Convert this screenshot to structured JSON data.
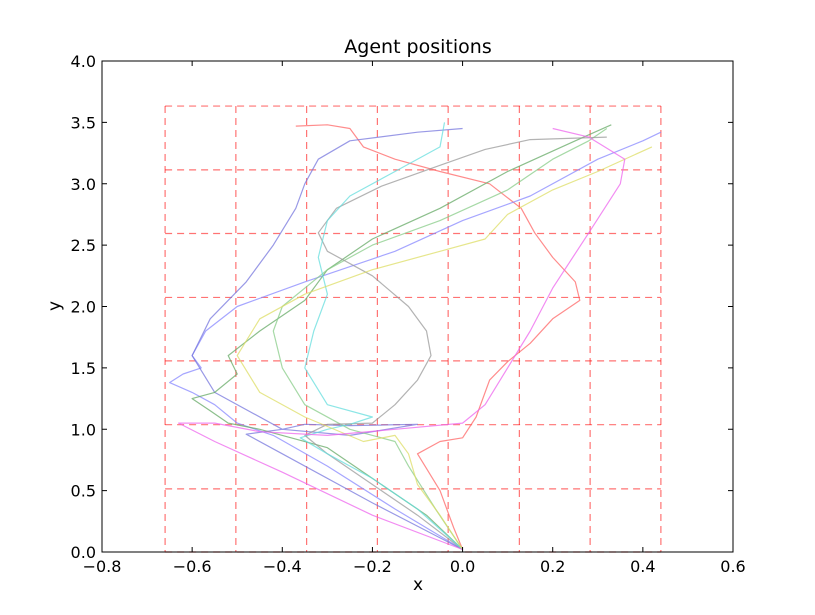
{
  "chart_data": {
    "type": "line",
    "title": "Agent positions",
    "xlabel": "x",
    "ylabel": "y",
    "xlim": [
      -0.8,
      0.6
    ],
    "ylim": [
      0.0,
      4.0
    ],
    "xticks": [
      -0.8,
      -0.6,
      -0.4,
      -0.2,
      0.0,
      0.2,
      0.4,
      0.6
    ],
    "xtick_labels": [
      "−0.8",
      "−0.6",
      "−0.4",
      "−0.2",
      "0.0",
      "0.2",
      "0.4",
      "0.6"
    ],
    "yticks": [
      0.0,
      0.5,
      1.0,
      1.5,
      2.0,
      2.5,
      3.0,
      3.5,
      4.0
    ],
    "ytick_labels": [
      "0.0",
      "0.5",
      "1.0",
      "1.5",
      "2.0",
      "2.5",
      "3.0",
      "3.5",
      "4.0"
    ],
    "grid_overlay": {
      "color": "#ff0000",
      "style": "dashed",
      "x": [
        -0.66,
        -0.503,
        -0.346,
        -0.189,
        -0.032,
        0.126,
        0.283,
        0.44
      ],
      "y": [
        0.0,
        0.514,
        1.037,
        1.557,
        2.074,
        2.595,
        3.113,
        3.633
      ]
    },
    "series": [
      {
        "color": "#ff6666",
        "points": [
          [
            0.0,
            0.02
          ],
          [
            -0.02,
            0.2
          ],
          [
            -0.05,
            0.5
          ],
          [
            -0.1,
            0.8
          ],
          [
            -0.05,
            0.9
          ],
          [
            0.0,
            0.93
          ],
          [
            0.03,
            1.1
          ],
          [
            0.06,
            1.4
          ],
          [
            0.1,
            1.55
          ],
          [
            0.15,
            1.7
          ],
          [
            0.2,
            1.9
          ],
          [
            0.26,
            2.05
          ],
          [
            0.25,
            2.2
          ],
          [
            0.2,
            2.4
          ],
          [
            0.16,
            2.6
          ],
          [
            0.13,
            2.8
          ],
          [
            0.06,
            3.0
          ],
          [
            -0.05,
            3.1
          ],
          [
            -0.15,
            3.2
          ],
          [
            -0.22,
            3.3
          ],
          [
            -0.25,
            3.45
          ],
          [
            -0.3,
            3.48
          ],
          [
            -0.37,
            3.47
          ]
        ]
      },
      {
        "color": "#8888ff",
        "points": [
          [
            0.0,
            0.02
          ],
          [
            -0.15,
            0.35
          ],
          [
            -0.3,
            0.7
          ],
          [
            -0.42,
            0.95
          ],
          [
            -0.5,
            1.05
          ],
          [
            -0.55,
            1.2
          ],
          [
            -0.6,
            1.3
          ],
          [
            -0.65,
            1.38
          ],
          [
            -0.62,
            1.45
          ],
          [
            -0.58,
            1.5
          ],
          [
            -0.6,
            1.6
          ],
          [
            -0.57,
            1.8
          ],
          [
            -0.5,
            2.0
          ],
          [
            -0.35,
            2.2
          ],
          [
            -0.15,
            2.45
          ],
          [
            0.0,
            2.7
          ],
          [
            0.15,
            2.9
          ],
          [
            0.3,
            3.2
          ],
          [
            0.4,
            3.35
          ],
          [
            0.44,
            3.42
          ]
        ]
      },
      {
        "color": "#7777dd",
        "points": [
          [
            0.0,
            0.02
          ],
          [
            -0.2,
            0.4
          ],
          [
            -0.4,
            0.8
          ],
          [
            -0.48,
            0.96
          ],
          [
            -0.4,
            1.0
          ],
          [
            -0.35,
            1.04
          ],
          [
            -0.25,
            1.03
          ],
          [
            -0.1,
            1.04
          ],
          [
            -0.25,
            0.95
          ],
          [
            -0.4,
            1.0
          ],
          [
            -0.55,
            1.3
          ],
          [
            -0.6,
            1.6
          ],
          [
            -0.56,
            1.9
          ],
          [
            -0.48,
            2.2
          ],
          [
            -0.42,
            2.5
          ],
          [
            -0.37,
            2.8
          ],
          [
            -0.35,
            3.0
          ],
          [
            -0.32,
            3.2
          ],
          [
            -0.25,
            3.35
          ],
          [
            -0.1,
            3.42
          ],
          [
            0.0,
            3.45
          ]
        ]
      },
      {
        "color": "#66aa66",
        "points": [
          [
            0.0,
            0.02
          ],
          [
            -0.08,
            0.3
          ],
          [
            -0.2,
            0.6
          ],
          [
            -0.3,
            0.85
          ],
          [
            -0.45,
            1.0
          ],
          [
            -0.52,
            1.05
          ],
          [
            -0.56,
            1.15
          ],
          [
            -0.6,
            1.25
          ],
          [
            -0.55,
            1.3
          ],
          [
            -0.5,
            1.45
          ],
          [
            -0.52,
            1.6
          ],
          [
            -0.45,
            1.8
          ],
          [
            -0.35,
            2.05
          ],
          [
            -0.3,
            2.3
          ],
          [
            -0.2,
            2.55
          ],
          [
            -0.05,
            2.8
          ],
          [
            0.1,
            3.1
          ],
          [
            0.25,
            3.35
          ],
          [
            0.33,
            3.48
          ]
        ]
      },
      {
        "color": "#88cc88",
        "points": [
          [
            0.0,
            0.02
          ],
          [
            -0.06,
            0.35
          ],
          [
            -0.12,
            0.7
          ],
          [
            -0.15,
            0.9
          ],
          [
            -0.25,
            1.0
          ],
          [
            -0.35,
            1.2
          ],
          [
            -0.4,
            1.5
          ],
          [
            -0.42,
            1.8
          ],
          [
            -0.4,
            2.0
          ],
          [
            -0.3,
            2.3
          ],
          [
            -0.2,
            2.5
          ],
          [
            -0.05,
            2.7
          ],
          [
            0.1,
            2.95
          ],
          [
            0.2,
            3.2
          ],
          [
            0.28,
            3.35
          ],
          [
            0.32,
            3.45
          ]
        ]
      },
      {
        "color": "#999999",
        "points": [
          [
            0.0,
            0.02
          ],
          [
            -0.1,
            0.3
          ],
          [
            -0.2,
            0.55
          ],
          [
            -0.3,
            0.8
          ],
          [
            -0.35,
            0.95
          ],
          [
            -0.3,
            1.04
          ],
          [
            -0.2,
            1.05
          ],
          [
            -0.15,
            1.2
          ],
          [
            -0.1,
            1.4
          ],
          [
            -0.07,
            1.6
          ],
          [
            -0.08,
            1.8
          ],
          [
            -0.12,
            2.0
          ],
          [
            -0.2,
            2.25
          ],
          [
            -0.3,
            2.45
          ],
          [
            -0.32,
            2.6
          ],
          [
            -0.28,
            2.8
          ],
          [
            -0.18,
            2.98
          ],
          [
            -0.05,
            3.15
          ],
          [
            0.05,
            3.28
          ],
          [
            0.15,
            3.36
          ],
          [
            0.32,
            3.38
          ]
        ]
      },
      {
        "color": "#66dddd",
        "points": [
          [
            0.0,
            0.02
          ],
          [
            -0.1,
            0.35
          ],
          [
            -0.2,
            0.6
          ],
          [
            -0.3,
            0.8
          ],
          [
            -0.36,
            0.93
          ],
          [
            -0.3,
            1.0
          ],
          [
            -0.25,
            1.04
          ],
          [
            -0.2,
            1.1
          ],
          [
            -0.3,
            1.2
          ],
          [
            -0.35,
            1.5
          ],
          [
            -0.33,
            1.8
          ],
          [
            -0.3,
            2.1
          ],
          [
            -0.32,
            2.4
          ],
          [
            -0.3,
            2.7
          ],
          [
            -0.25,
            2.9
          ],
          [
            -0.15,
            3.1
          ],
          [
            -0.05,
            3.3
          ],
          [
            -0.04,
            3.5
          ]
        ]
      },
      {
        "color": "#dddd66",
        "points": [
          [
            0.0,
            0.02
          ],
          [
            -0.05,
            0.3
          ],
          [
            -0.1,
            0.55
          ],
          [
            -0.12,
            0.8
          ],
          [
            -0.15,
            0.95
          ],
          [
            -0.22,
            0.9
          ],
          [
            -0.35,
            1.1
          ],
          [
            -0.45,
            1.3
          ],
          [
            -0.5,
            1.6
          ],
          [
            -0.45,
            1.9
          ],
          [
            -0.35,
            2.1
          ],
          [
            -0.2,
            2.3
          ],
          [
            -0.05,
            2.45
          ],
          [
            0.05,
            2.55
          ],
          [
            0.1,
            2.75
          ],
          [
            0.2,
            2.95
          ],
          [
            0.3,
            3.1
          ],
          [
            0.42,
            3.3
          ]
        ]
      },
      {
        "color": "#ee66ee",
        "points": [
          [
            0.0,
            0.02
          ],
          [
            -0.2,
            0.3
          ],
          [
            -0.4,
            0.65
          ],
          [
            -0.55,
            0.9
          ],
          [
            -0.63,
            1.05
          ],
          [
            -0.55,
            1.05
          ],
          [
            -0.45,
            0.98
          ],
          [
            -0.3,
            0.95
          ],
          [
            -0.15,
            1.0
          ],
          [
            0.0,
            1.05
          ],
          [
            0.05,
            1.2
          ],
          [
            0.1,
            1.5
          ],
          [
            0.15,
            1.8
          ],
          [
            0.2,
            2.15
          ],
          [
            0.28,
            2.6
          ],
          [
            0.35,
            3.0
          ],
          [
            0.36,
            3.2
          ],
          [
            0.28,
            3.38
          ],
          [
            0.2,
            3.45
          ]
        ]
      }
    ]
  }
}
